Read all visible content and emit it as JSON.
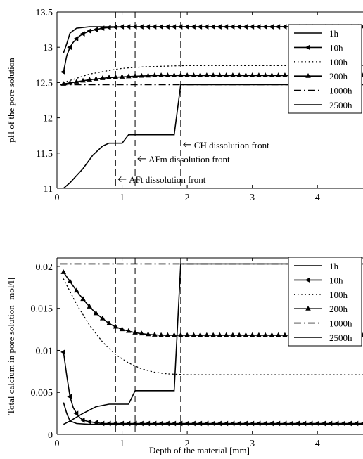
{
  "chart_data": [
    {
      "type": "line",
      "title": "",
      "xlabel": "",
      "ylabel": "pH of the pore solution",
      "xlim": [
        0,
        4.7
      ],
      "ylim": [
        11,
        13.5
      ],
      "xticks": [
        0,
        1,
        2,
        3,
        4
      ],
      "xtick_labels": [
        "0",
        "1",
        "2",
        "3",
        "4"
      ],
      "yticks": [
        11,
        11.5,
        12,
        12.5,
        13,
        13.5
      ],
      "ytick_labels": [
        "11",
        "11.5",
        "12",
        "12.5",
        "13",
        "13.5"
      ],
      "grid": false,
      "legend_position": "top-right",
      "vlines": [
        0.9,
        1.2,
        1.9
      ],
      "annotations": [
        {
          "text": "CH dissolution front",
          "x": 1.9,
          "y": 11.62
        },
        {
          "text": "AFm dissolution front",
          "x": 1.2,
          "y": 11.42
        },
        {
          "text": "AFt dissolution front",
          "x": 0.9,
          "y": 11.13
        }
      ],
      "series": [
        {
          "name": "1h",
          "style": "solid",
          "marker": "none",
          "x": [
            0.1,
            0.15,
            0.2,
            0.3,
            0.5,
            1.0,
            2.0,
            3.0,
            4.7
          ],
          "y": [
            12.92,
            13.05,
            13.2,
            13.27,
            13.29,
            13.29,
            13.29,
            13.29,
            13.29
          ]
        },
        {
          "name": "10h",
          "style": "solid",
          "marker": "left-triangle",
          "x": [
            0.1,
            0.15,
            0.2,
            0.25,
            0.3,
            0.35,
            0.4,
            0.5,
            0.6,
            0.7,
            0.8,
            1.0,
            1.2,
            1.5,
            2.0,
            3.0,
            4.7
          ],
          "y": [
            12.65,
            12.88,
            13.0,
            13.07,
            13.12,
            13.16,
            13.19,
            13.23,
            13.25,
            13.27,
            13.28,
            13.29,
            13.29,
            13.29,
            13.29,
            13.29,
            13.29
          ]
        },
        {
          "name": "100h",
          "style": "dotted",
          "marker": "none",
          "x": [
            0.1,
            0.3,
            0.5,
            0.8,
            1.0,
            1.3,
            1.6,
            2.0,
            3.0,
            4.7
          ],
          "y": [
            12.5,
            12.56,
            12.62,
            12.67,
            12.7,
            12.72,
            12.73,
            12.74,
            12.74,
            12.74
          ]
        },
        {
          "name": "200h",
          "style": "solid",
          "marker": "up-triangle",
          "x": [
            0.1,
            0.3,
            0.5,
            0.8,
            1.0,
            1.2,
            1.5,
            2.0,
            3.0,
            4.7
          ],
          "y": [
            12.48,
            12.51,
            12.54,
            12.57,
            12.58,
            12.59,
            12.6,
            12.6,
            12.6,
            12.6
          ]
        },
        {
          "name": "1000h",
          "style": "dashdot",
          "marker": "none",
          "x": [
            0.05,
            4.7
          ],
          "y": [
            12.47,
            12.47
          ]
        },
        {
          "name": "2500h",
          "style": "solid",
          "marker": "none",
          "x": [
            0.1,
            0.2,
            0.4,
            0.55,
            0.7,
            0.8,
            1.0,
            1.05,
            1.1,
            1.3,
            1.5,
            1.8,
            1.9,
            2.0,
            3.0,
            4.7
          ],
          "y": [
            11.0,
            11.08,
            11.28,
            11.47,
            11.6,
            11.64,
            11.64,
            11.7,
            11.76,
            11.76,
            11.76,
            11.76,
            12.47,
            12.47,
            12.47,
            12.47
          ]
        }
      ]
    },
    {
      "type": "line",
      "title": "",
      "xlabel": "Depth of the material [mm]",
      "ylabel": "Total calcium in pore solution [mol/l]",
      "xlim": [
        0,
        4.7
      ],
      "ylim": [
        0,
        0.021
      ],
      "xticks": [
        0,
        1,
        2,
        3,
        4
      ],
      "xtick_labels": [
        "0",
        "1",
        "2",
        "3",
        "4"
      ],
      "yticks": [
        0,
        0.005,
        0.01,
        0.015,
        0.02
      ],
      "ytick_labels": [
        "0",
        "0.005",
        "0.01",
        "0.015",
        "0.02"
      ],
      "grid": false,
      "legend_position": "top-right",
      "vlines": [
        0.9,
        1.2,
        1.9
      ],
      "annotations": [],
      "series": [
        {
          "name": "1h",
          "style": "solid",
          "marker": "none",
          "x": [
            0.1,
            0.15,
            0.2,
            0.3,
            0.5,
            1.0,
            2.0,
            3.0,
            4.7
          ],
          "y": [
            0.0038,
            0.0025,
            0.0016,
            0.0013,
            0.0012,
            0.0012,
            0.0012,
            0.0012,
            0.0012
          ]
        },
        {
          "name": "10h",
          "style": "solid",
          "marker": "left-triangle",
          "x": [
            0.1,
            0.15,
            0.2,
            0.25,
            0.3,
            0.35,
            0.4,
            0.5,
            0.6,
            0.7,
            0.8,
            1.0,
            1.2,
            1.5,
            2.0,
            3.0,
            4.7
          ],
          "y": [
            0.0098,
            0.007,
            0.0045,
            0.0032,
            0.0025,
            0.002,
            0.0017,
            0.0015,
            0.0014,
            0.0013,
            0.0013,
            0.0013,
            0.0013,
            0.0013,
            0.0013,
            0.0013,
            0.0013
          ]
        },
        {
          "name": "100h",
          "style": "dotted",
          "marker": "none",
          "x": [
            0.1,
            0.3,
            0.5,
            0.7,
            0.9,
            1.1,
            1.3,
            1.5,
            1.7,
            2.0,
            3.0,
            4.7
          ],
          "y": [
            0.0185,
            0.0155,
            0.013,
            0.011,
            0.0095,
            0.0085,
            0.0078,
            0.0074,
            0.0072,
            0.0071,
            0.0071,
            0.0071
          ]
        },
        {
          "name": "200h",
          "style": "solid",
          "marker": "up-triangle",
          "x": [
            0.1,
            0.2,
            0.3,
            0.4,
            0.5,
            0.6,
            0.7,
            0.8,
            0.9,
            1.0,
            1.2,
            1.4,
            1.6,
            1.8,
            2.0,
            3.0,
            4.7
          ],
          "y": [
            0.0193,
            0.0182,
            0.0171,
            0.0161,
            0.0152,
            0.0144,
            0.0138,
            0.0132,
            0.0128,
            0.0125,
            0.0121,
            0.0119,
            0.0118,
            0.0118,
            0.0118,
            0.0118,
            0.0118
          ]
        },
        {
          "name": "1000h",
          "style": "dashdot",
          "marker": "none",
          "x": [
            0.05,
            4.7
          ],
          "y": [
            0.0203,
            0.0203
          ]
        },
        {
          "name": "2500h",
          "style": "solid",
          "marker": "none",
          "x": [
            0.1,
            0.2,
            0.4,
            0.6,
            0.8,
            1.0,
            1.1,
            1.2,
            1.5,
            1.8,
            1.9,
            2.0,
            3.0,
            4.7
          ],
          "y": [
            0.0012,
            0.0016,
            0.0025,
            0.0033,
            0.0036,
            0.0036,
            0.0036,
            0.0052,
            0.0052,
            0.0052,
            0.0203,
            0.0203,
            0.0203,
            0.0203
          ]
        }
      ]
    }
  ]
}
